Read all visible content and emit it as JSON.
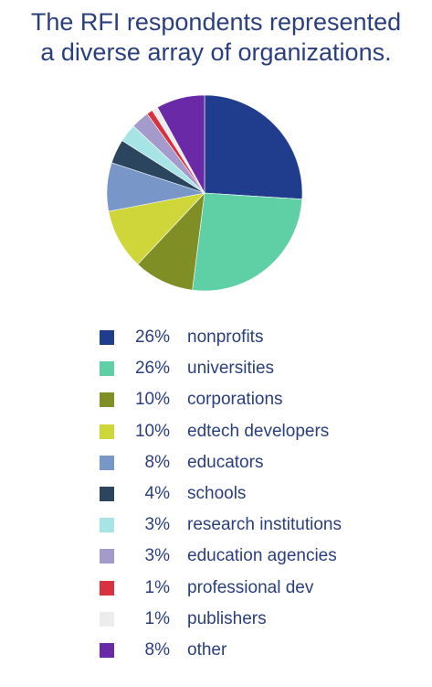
{
  "chart_data": {
    "type": "pie",
    "title_lines": [
      "The RFI respondents represented",
      "a diverse array of organizations."
    ],
    "slices": [
      {
        "label": "nonprofits",
        "pct_label": "26%",
        "value": 26,
        "color": "#1f3d8c"
      },
      {
        "label": "universities",
        "pct_label": "26%",
        "value": 26,
        "color": "#5fd0a6"
      },
      {
        "label": "corporations",
        "pct_label": "10%",
        "value": 10,
        "color": "#7f8f26"
      },
      {
        "label": "edtech developers",
        "pct_label": "10%",
        "value": 10,
        "color": "#cfd63a"
      },
      {
        "label": "educators",
        "pct_label": "8%",
        "value": 8,
        "color": "#7896c8"
      },
      {
        "label": "schools",
        "pct_label": "4%",
        "value": 4,
        "color": "#2b455f"
      },
      {
        "label": "research institutions",
        "pct_label": "3%",
        "value": 3,
        "color": "#a7e4e6"
      },
      {
        "label": "education agencies",
        "pct_label": "3%",
        "value": 3,
        "color": "#a49bcc"
      },
      {
        "label": "professional dev",
        "pct_label": "1%",
        "value": 1,
        "color": "#d9323f"
      },
      {
        "label": "publishers",
        "pct_label": "1%",
        "value": 1,
        "color": "#ececec"
      },
      {
        "label": "other",
        "pct_label": "8%",
        "value": 8,
        "color": "#6a2aa8"
      }
    ],
    "legend_position": "bottom"
  }
}
